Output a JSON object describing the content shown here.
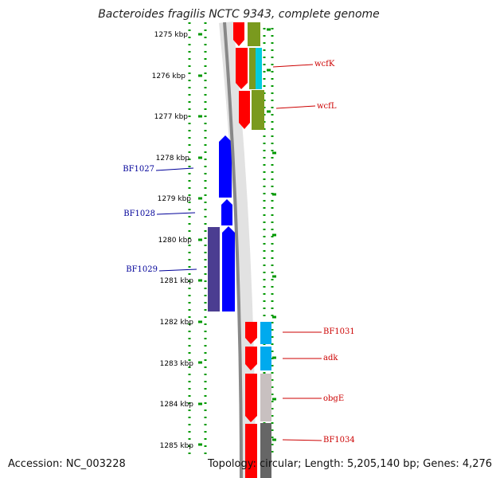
{
  "title": "Bacteroides fragilis NCTC 9343, complete genome",
  "accession_label": "Accession: NC_003228",
  "topology_label": "Topology: circular; Length: 5,205,140 bp; Genes: 4,276",
  "axis": {
    "unit": "kbp",
    "ticks": [
      "1275 kbp",
      "1276 kbp",
      "1277 kbp",
      "1278 kbp",
      "1279 kbp",
      "1280 kbp",
      "1281 kbp",
      "1282 kbp",
      "1283 kbp",
      "1284 kbp",
      "1285 kbp"
    ]
  },
  "genes": [
    {
      "label": "wcfK",
      "color": "#cc0000"
    },
    {
      "label": "wcfL",
      "color": "#cc0000"
    },
    {
      "label": "BF1027",
      "color": "#000099"
    },
    {
      "label": "BF1028",
      "color": "#000099"
    },
    {
      "label": "BF1029",
      "color": "#000099"
    },
    {
      "label": "BF1031",
      "color": "#cc0000"
    },
    {
      "label": "adk",
      "color": "#cc0000"
    },
    {
      "label": "obgE",
      "color": "#cc0000"
    },
    {
      "label": "BF1034",
      "color": "#cc0000"
    }
  ],
  "colors": {
    "forward": "#ff0000",
    "reverse": "#0000ff",
    "backbone": "#888888",
    "ticks_green": "#009900",
    "cog_olive": "#7a9a1e",
    "cog_cyan": "#00ccdd",
    "cog_skyblue": "#00aaee",
    "cog_purple": "#4b3d91",
    "cog_lightgray": "#c8c0c0",
    "cog_darkgray": "#666666"
  }
}
